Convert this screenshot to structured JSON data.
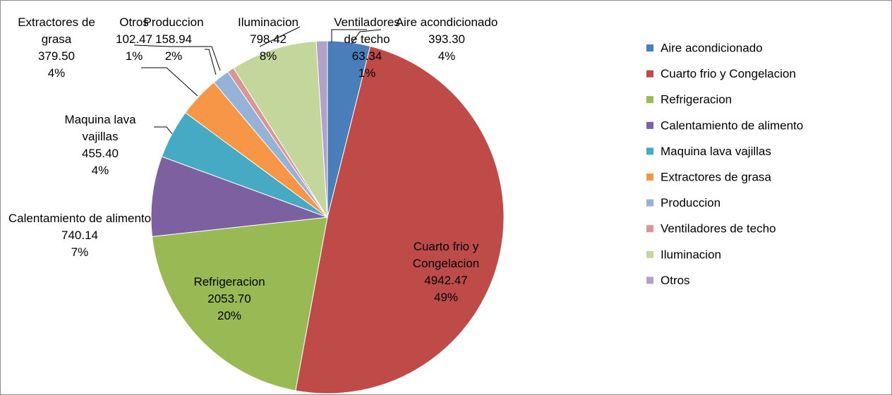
{
  "chart_data": {
    "type": "pie",
    "categories": [
      "Aire acondicionado",
      "Cuarto frio y Congelacion",
      "Refrigeracion",
      "Calentamiento de alimento",
      "Maquina lava vajillas",
      "Extractores de grasa",
      "Produccion",
      "Ventiladores de techo",
      "Iluminacion",
      "Otros"
    ],
    "values": [
      393.3,
      4942.47,
      2053.7,
      740.14,
      455.4,
      379.5,
      158.94,
      63.34,
      798.42,
      102.47
    ],
    "value_labels": [
      "393.30",
      "4942.47",
      "2053.70",
      "740.14",
      "455.40",
      "379.50",
      "158.94",
      "63.34",
      "798.42",
      "102.47"
    ],
    "percent_labels": [
      "4%",
      "49%",
      "20%",
      "7%",
      "4%",
      "4%",
      "2%",
      "1%",
      "8%",
      "1%"
    ],
    "colors": [
      "#4a7ebb",
      "#be4b48",
      "#98b954",
      "#7d60a0",
      "#46aac5",
      "#f79646",
      "#95b3d7",
      "#d99694",
      "#c3d69b",
      "#b3a2c7"
    ],
    "legend": "right"
  }
}
